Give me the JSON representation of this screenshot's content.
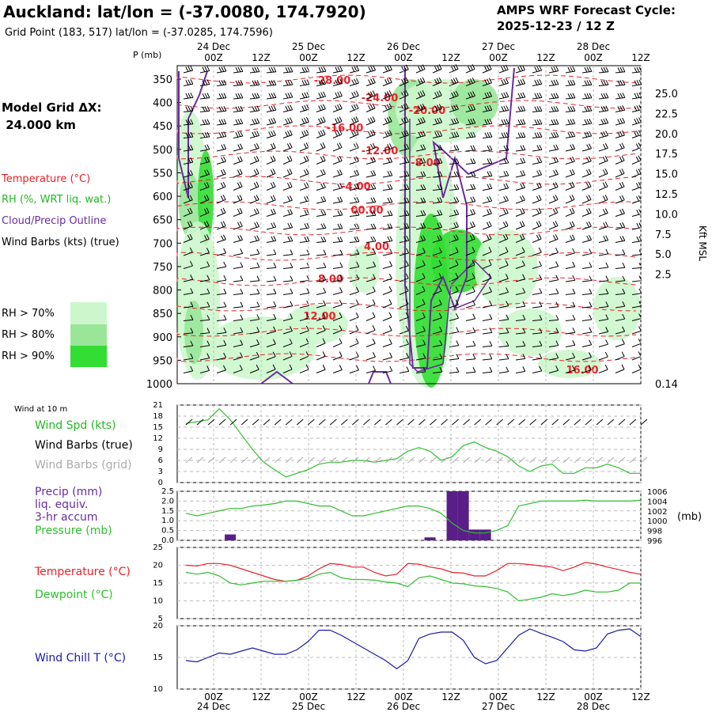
{
  "header": {
    "title": "Auckland:  lat/lon = (-37.0080, 174.7920)",
    "grid_point": "Grid Point (183, 517) lat/lon = (-37.0285, 174.7596)",
    "cycle_label": "AMPS WRF Forecast Cycle:",
    "cycle_value": "2025-12-23 / 12  Z"
  },
  "model": {
    "label": "Model Grid ΔX:",
    "value": " 24.000 km"
  },
  "legend": {
    "temperature": "Temperature (°C)",
    "rh": "RH (%, WRT liq. wat.)",
    "cloud": "Cloud/Precip Outline",
    "wind": "Wind Barbs (kts) (true)",
    "rh70": "RH > 70%",
    "rh80": "RH > 80%",
    "rh90": "RH > 90%"
  },
  "colors": {
    "temperature": "#e8232a",
    "rh_green": "#22b822",
    "cloud_purple": "#6a2b9c",
    "rh70": "#ccf7cc",
    "rh80": "#99e699",
    "rh90": "#33dd33",
    "pressure_line": "#2fbf2f",
    "precip_bar": "#5a1e88",
    "dewpoint_line": "#2fbf2f",
    "windchill_line": "#1a1aa8",
    "grey_barbs": "#aaaaaa"
  },
  "time_axis": {
    "ticks": [
      "00Z",
      "12Z",
      "00Z",
      "12Z",
      "00Z",
      "12Z",
      "00Z",
      "12Z",
      "00Z",
      "12Z"
    ],
    "dates": [
      "24 Dec",
      "25 Dec",
      "26 Dec",
      "27 Dec",
      "28 Dec"
    ]
  },
  "chart_data": [
    {
      "type": "heatmap",
      "name": "cross_section",
      "y_label": "P (mb)",
      "y_ticks": [
        "350",
        "400",
        "450",
        "500",
        "550",
        "600",
        "650",
        "700",
        "750",
        "800",
        "850",
        "900",
        "950",
        "1000"
      ],
      "right_ticks": [
        "25.0",
        "22.5",
        "20.0",
        "17.5",
        "15.0",
        "12.5",
        "10.0",
        "7.5",
        "5.0",
        "2.5",
        "0.14"
      ],
      "right_label": "Kft MSL",
      "temperature_contours": [
        "-28.00",
        "-24.00",
        "-20.00",
        "-16.00",
        "-12.00",
        "-8.00",
        "-4.00",
        "00.00",
        "4.00",
        "8.00",
        "12.00",
        "16.00"
      ]
    },
    {
      "type": "line",
      "name": "wind10m",
      "label_small": "Wind at 10 m",
      "labels": [
        "Wind Spd (kts)",
        "Wind Barbs (true)",
        "Wind Barbs (grid)"
      ],
      "y_ticks": [
        "21",
        "18",
        "15",
        "12",
        "9",
        "6",
        "3",
        "0"
      ],
      "ylim": [
        0,
        21
      ],
      "wind_speed": [
        16,
        16.5,
        17,
        20,
        17,
        13,
        9,
        5.5,
        3.5,
        1.5,
        2.5,
        3.5,
        5,
        5.5,
        5.5,
        6,
        6,
        5.5,
        6,
        6.5,
        8.5,
        9.5,
        8.5,
        6,
        7,
        10,
        11,
        9.5,
        8.5,
        7,
        4.5,
        3,
        4.5,
        5,
        2.5,
        2.5,
        4,
        4,
        5,
        4,
        2.5,
        2.5
      ]
    },
    {
      "type": "bar",
      "name": "precip_pressure",
      "labels": [
        "Precip (mm)",
        "liq. equiv.",
        "3-hr accum",
        "Pressure (mb)"
      ],
      "y_ticks": [
        "2.5",
        "2.0",
        "1.5",
        "1.0",
        "0.5",
        "0.0"
      ],
      "right_ticks": [
        "1006",
        "1004",
        "1002",
        "1000",
        "998",
        "996"
      ],
      "right_unit": "(mb)",
      "ylim": [
        0,
        2.5
      ],
      "plim": [
        996,
        1006
      ],
      "precip": [
        0,
        0,
        0,
        0,
        0.3,
        0,
        0,
        0,
        0,
        0,
        0,
        0,
        0,
        0,
        0,
        0,
        0,
        0,
        0,
        0,
        0,
        0,
        0.15,
        0,
        2.5,
        2.5,
        0.55,
        0.55,
        0,
        0,
        0,
        0,
        0,
        0,
        0,
        0,
        0,
        0,
        0,
        0,
        0,
        0
      ],
      "pressure": [
        1001.5,
        1001,
        1001.5,
        1002,
        1002.5,
        1002.5,
        1003,
        1003.2,
        1003.5,
        1004,
        1004,
        1003.5,
        1003,
        1003,
        1002,
        1001,
        1001,
        1001.5,
        1002,
        1002.5,
        1003,
        1003,
        1002.5,
        1001.5,
        999.5,
        998,
        997.5,
        997.5,
        998,
        999,
        1003,
        1003.5,
        1004,
        1004,
        1004,
        1004,
        1004.2,
        1004,
        1004,
        1004,
        1004,
        1004.2
      ]
    },
    {
      "type": "line",
      "name": "temp_dew",
      "labels": [
        "Temperature (°C)",
        "Dewpoint (°C)"
      ],
      "y_ticks": [
        "25",
        "20",
        "15",
        "10",
        "5"
      ],
      "ylim": [
        5,
        25
      ],
      "temperature": [
        20,
        19.8,
        20.5,
        20.5,
        20,
        19,
        18,
        17,
        16,
        15.5,
        15.8,
        17,
        19,
        20.5,
        20.2,
        19.5,
        19.5,
        18,
        17,
        17.5,
        20.5,
        20.3,
        19.5,
        19,
        18,
        17.8,
        17,
        17,
        18.5,
        20.5,
        20.5,
        20.2,
        19.8,
        19.5,
        18.5,
        19.5,
        20.8,
        20.3,
        19.5,
        18.8,
        18,
        17.5
      ],
      "dewpoint": [
        18,
        17.5,
        18,
        17,
        15,
        14.5,
        15,
        15.5,
        15.5,
        15.5,
        15.8,
        16.2,
        17.5,
        18,
        16.5,
        16,
        16,
        15.8,
        15.3,
        15,
        14,
        16.5,
        17,
        16,
        15,
        14.8,
        14.2,
        14,
        13.5,
        12.5,
        10,
        10.5,
        11,
        12,
        11.5,
        12,
        13,
        12.5,
        12.5,
        13,
        15,
        15
      ]
    },
    {
      "type": "line",
      "name": "windchill",
      "labels": [
        "Wind Chill T (°C)"
      ],
      "y_ticks": [
        "20",
        "15",
        "10"
      ],
      "ylim": [
        10,
        20
      ],
      "windchill": [
        14.5,
        14.3,
        15,
        15.7,
        15.5,
        16,
        16.5,
        16,
        15.5,
        15.5,
        16.2,
        17.5,
        19.3,
        19.3,
        18.5,
        17.5,
        16.5,
        15.5,
        14.5,
        13.2,
        14.5,
        18.0,
        18.7,
        19.0,
        19.0,
        17.7,
        15.0,
        14.0,
        14.5,
        16.5,
        18.5,
        19.5,
        18.8,
        18.2,
        17.5,
        16.2,
        16.0,
        16.5,
        18.7,
        19.3,
        19.5,
        18.3
      ]
    }
  ]
}
